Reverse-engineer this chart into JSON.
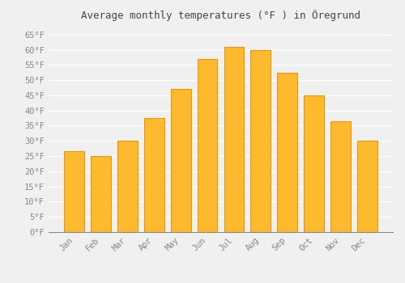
{
  "title": "Average monthly temperatures (°F ) in Öregrund",
  "months": [
    "Jan",
    "Feb",
    "Mar",
    "Apr",
    "May",
    "Jun",
    "Jul",
    "Aug",
    "Sep",
    "Oct",
    "Nov",
    "Dec"
  ],
  "values": [
    26.5,
    25.0,
    30.0,
    37.5,
    47.0,
    57.0,
    61.0,
    60.0,
    52.5,
    45.0,
    36.5,
    30.0
  ],
  "bar_color": "#FDBA2E",
  "bar_edge_color": "#E8960A",
  "background_color": "#F0F0F0",
  "grid_color": "#FFFFFF",
  "tick_label_color": "#888888",
  "title_color": "#444444",
  "ylim": [
    0,
    68
  ],
  "yticks": [
    0,
    5,
    10,
    15,
    20,
    25,
    30,
    35,
    40,
    45,
    50,
    55,
    60,
    65
  ],
  "ytick_labels": [
    "0°F",
    "5°F",
    "10°F",
    "15°F",
    "20°F",
    "25°F",
    "30°F",
    "35°F",
    "40°F",
    "45°F",
    "50°F",
    "55°F",
    "60°F",
    "65°F"
  ],
  "title_fontsize": 9,
  "tick_fontsize": 7.5,
  "font_family": "monospace",
  "bar_width": 0.75
}
